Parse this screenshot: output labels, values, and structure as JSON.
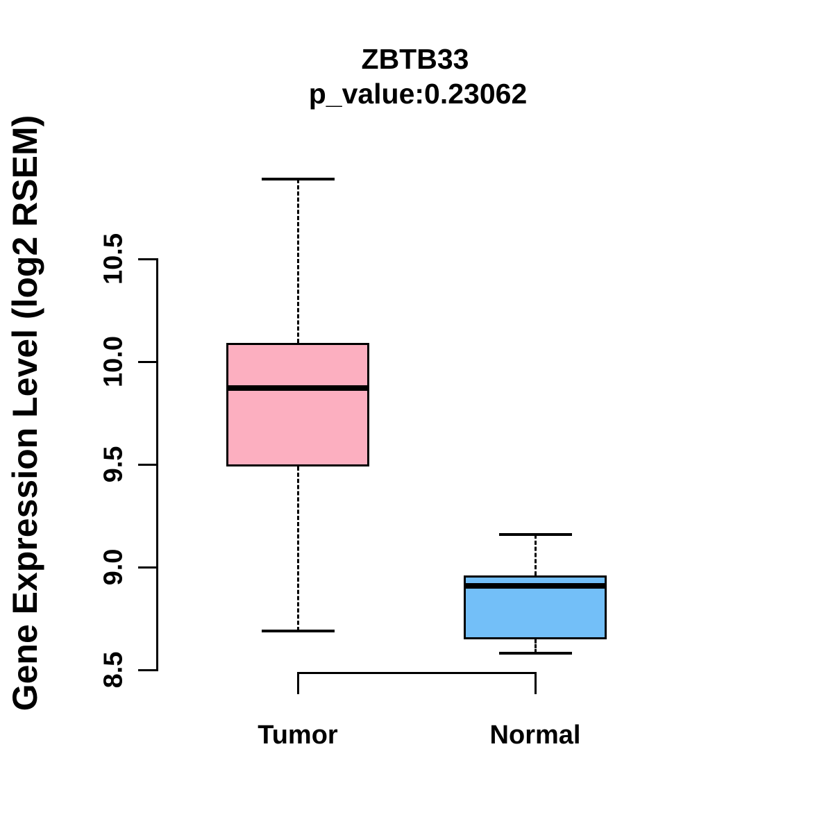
{
  "chart_data": {
    "type": "boxplot",
    "title": "ZBTB33",
    "subtitle": "p_value:0.23062",
    "ylabel": "Gene Expression Level (log2 RSEM)",
    "categories": [
      "Tumor",
      "Normal"
    ],
    "ytick_labels": [
      "8.5",
      "9.0",
      "9.5",
      "10.0",
      "10.5"
    ],
    "ytick_values": [
      8.5,
      9.0,
      9.5,
      10.0,
      10.5
    ],
    "ylim": [
      8.5,
      10.5
    ],
    "grid": "off",
    "legend": "none",
    "series": [
      {
        "name": "Tumor",
        "color": "#FCAFC0",
        "whisker_low": 8.69,
        "q1": 9.49,
        "median": 9.87,
        "q3": 10.09,
        "whisker_high": 10.89
      },
      {
        "name": "Normal",
        "color": "#73BFF8",
        "whisker_low": 8.58,
        "q1": 8.65,
        "median": 8.91,
        "q3": 8.96,
        "whisker_high": 9.16
      }
    ],
    "colors": {
      "axis": "#000000",
      "box_border": "#000000",
      "median_line": "#000000",
      "text": "#000000"
    }
  }
}
